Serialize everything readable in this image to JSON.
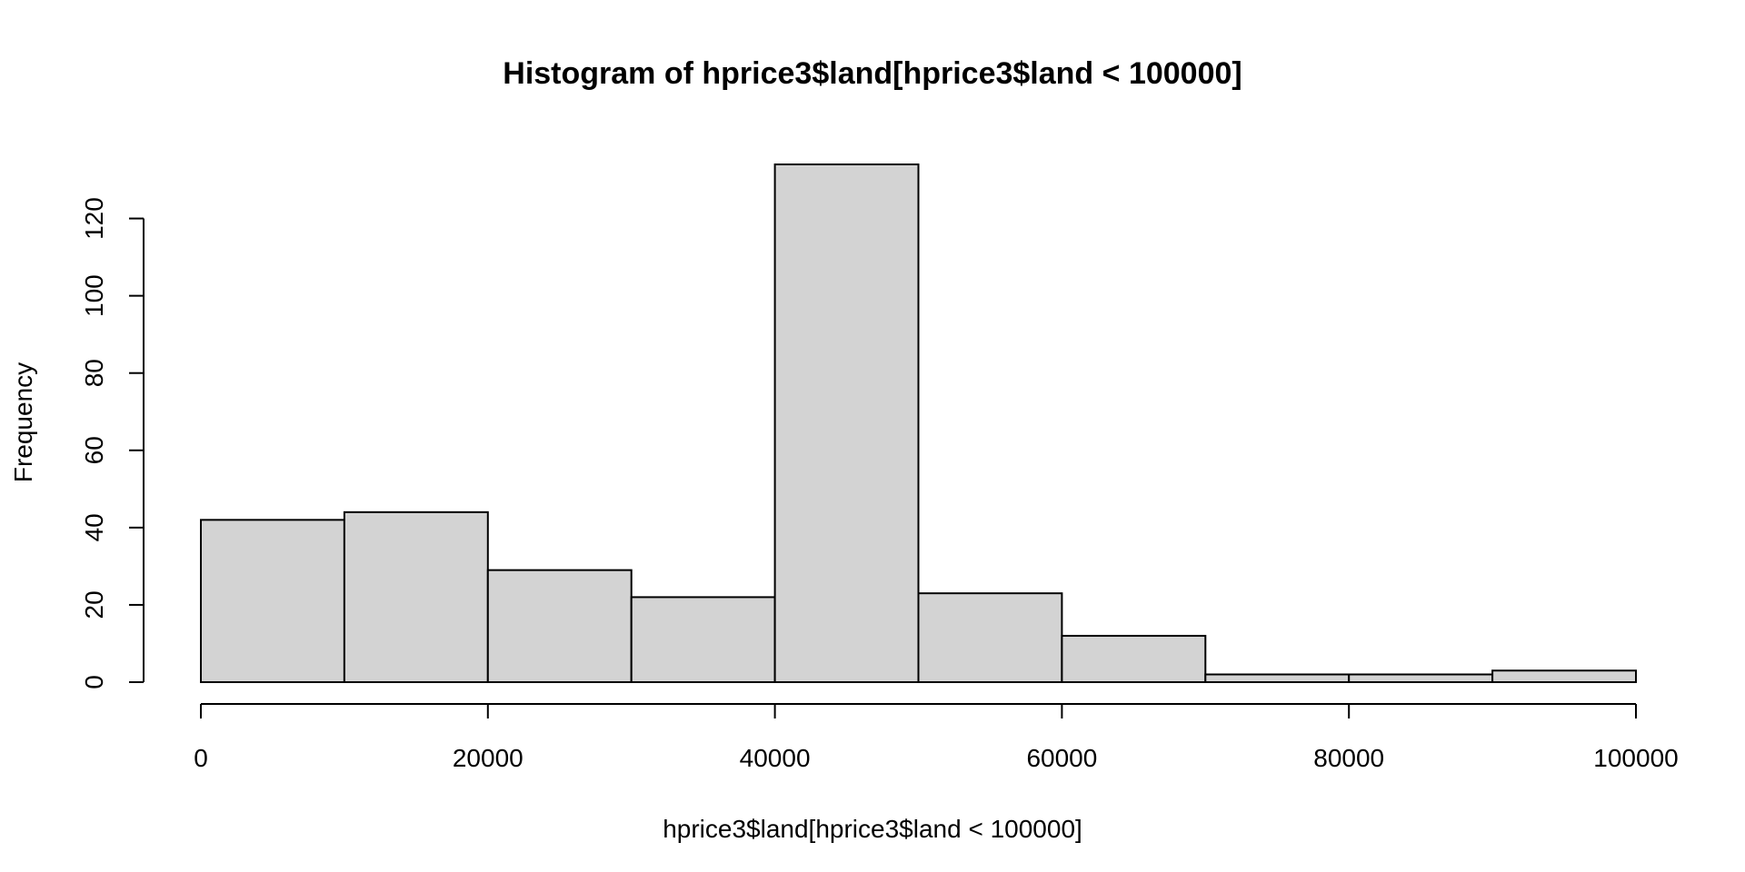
{
  "chart_data": {
    "type": "bar",
    "title": "Histogram of hprice3$land[hprice3$land < 100000]",
    "xlabel": "hprice3$land[hprice3$land < 100000]",
    "ylabel": "Frequency",
    "bins": [
      {
        "from": 0,
        "to": 10000,
        "count": 42
      },
      {
        "from": 10000,
        "to": 20000,
        "count": 44
      },
      {
        "from": 20000,
        "to": 30000,
        "count": 29
      },
      {
        "from": 30000,
        "to": 40000,
        "count": 22
      },
      {
        "from": 40000,
        "to": 50000,
        "count": 134
      },
      {
        "from": 50000,
        "to": 60000,
        "count": 23
      },
      {
        "from": 60000,
        "to": 70000,
        "count": 12
      },
      {
        "from": 70000,
        "to": 80000,
        "count": 2
      },
      {
        "from": 80000,
        "to": 90000,
        "count": 2
      },
      {
        "from": 90000,
        "to": 100000,
        "count": 3
      }
    ],
    "xlim": [
      0,
      100000
    ],
    "ylim": [
      0,
      134
    ],
    "x_ticks": [
      0,
      20000,
      40000,
      60000,
      80000,
      100000
    ],
    "y_ticks": [
      0,
      20,
      40,
      60,
      80,
      100,
      120
    ],
    "bar_color": "#d3d3d3",
    "grid": false,
    "legend": "none"
  }
}
